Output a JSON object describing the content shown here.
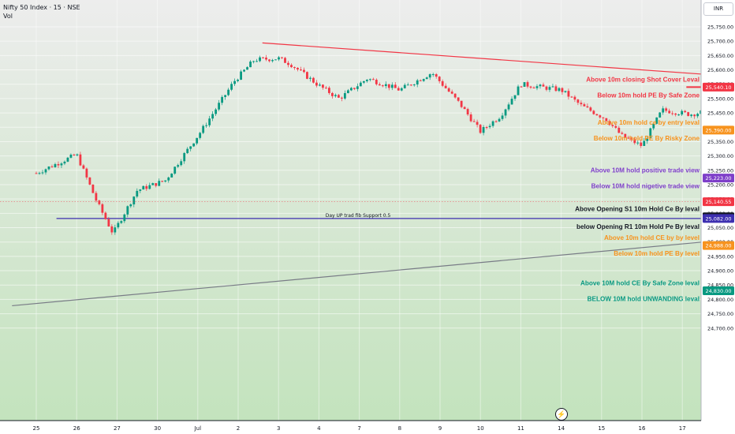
{
  "header": {
    "title": "Nifty 50 Index · 15 · NSE",
    "volume_label": "Vol",
    "currency": "INR"
  },
  "chart_data": {
    "type": "candlestick",
    "ylim": [
      24680,
      25800
    ],
    "y_ticks": [
      "25,750.00",
      "25,700.00",
      "25,650.00",
      "25,600.00",
      "25,550.00",
      "25,500.00",
      "25,450.00",
      "25,400.00",
      "25,350.00",
      "25,300.00",
      "25,250.00",
      "25,200.00",
      "25,150.00",
      "25,100.00",
      "25,050.00",
      "25,000.00",
      "24,950.00",
      "24,900.00",
      "24,850.00",
      "24,800.00",
      "24,750.00",
      "24,700.00"
    ],
    "x_ticks": [
      "25",
      "26",
      "27",
      "30",
      "Jul",
      "2",
      "3",
      "4",
      "7",
      "8",
      "9",
      "10",
      "11",
      "14",
      "15",
      "16",
      "17"
    ],
    "candle_path": [
      [
        0,
        25240
      ],
      [
        1,
        25305
      ],
      [
        1.5,
        25140
      ],
      [
        1.9,
        25030
      ],
      [
        2.5,
        25180
      ],
      [
        3.2,
        25215
      ],
      [
        4.1,
        25390
      ],
      [
        4.9,
        25560
      ],
      [
        5.4,
        25635
      ],
      [
        6,
        25640
      ],
      [
        6.3,
        25620
      ],
      [
        7,
        25545
      ],
      [
        7.5,
        25500
      ],
      [
        8.2,
        25570
      ],
      [
        9,
        25530
      ],
      [
        9.8,
        25590
      ],
      [
        10.5,
        25480
      ],
      [
        11,
        25385
      ],
      [
        11.5,
        25440
      ],
      [
        12,
        25550
      ],
      [
        13,
        25530
      ],
      [
        13.5,
        25475
      ],
      [
        14.1,
        25430
      ],
      [
        14.5,
        25370
      ],
      [
        15,
        25335
      ],
      [
        15.5,
        25460
      ],
      [
        16.2,
        25445
      ],
      [
        17,
        25465
      ],
      [
        17.6,
        25440
      ],
      [
        18,
        25475
      ],
      [
        18.4,
        25490
      ],
      [
        19,
        25505
      ],
      [
        19.4,
        25550
      ],
      [
        19.9,
        25560
      ],
      [
        20.2,
        25545
      ],
      [
        20.6,
        25525
      ],
      [
        20.9,
        25445
      ],
      [
        21.3,
        25425
      ],
      [
        21.7,
        25390
      ],
      [
        22.3,
        25360
      ],
      [
        22.6,
        25395
      ],
      [
        22.8,
        25325
      ],
      [
        23,
        25265
      ],
      [
        23.3,
        25165
      ],
      [
        23.8,
        25155
      ],
      [
        24.2,
        25145
      ]
    ],
    "levels": [
      {
        "value": 25540.1,
        "price_label": "25,540.10",
        "color": "#f23645",
        "width": 2,
        "x_start": 16.1,
        "label_above": "Above 10m closing Shot Cover Leval",
        "label_below": "Below 10m hold PE By Safe Zone",
        "label_color": "#f23645"
      },
      {
        "value": 25390.0,
        "price_label": "25,390.00",
        "color": "#f7931e",
        "width": 1.2,
        "x_start": 20.1,
        "label_above": "Above 10m hold ce by entry leval",
        "label_below": "Below 10m hold PE By Risky Zone",
        "label_color": "#f7931e"
      },
      {
        "value": 25223.0,
        "price_label": "25,223.00",
        "color": "#7e3fc9",
        "width": 0.8,
        "x_start": 19.8,
        "label_above": "Above 10M hold positive trade view",
        "label_below": "Below 10M hold nigetive trade view",
        "label_color": "#7e3fc9"
      },
      {
        "value": 25088.0,
        "price_label": "25,088.00",
        "color": "#131722",
        "width": 0.8,
        "x_start": 19.5,
        "label_above": "Above Opening S1 10m Hold Ce By leval",
        "label_below": "",
        "label_color": "#131722"
      },
      {
        "value": 25082.0,
        "price_label": "25,082.00",
        "color": "#3d2fb0",
        "width": 1.2,
        "x_start": 0.5,
        "label_above": "",
        "label_below": "below Opening R1 10m Hold Pe By leval",
        "label_color": "#131722",
        "center_label": "Day UP trad fib Support 0.5"
      },
      {
        "value": 24988.0,
        "price_label": "24,988.00",
        "color": "#f7931e",
        "width": 1.2,
        "x_start": 19.5,
        "label_above": "Above 10m hold CE by by level",
        "label_below": "Below 10m hold PE By level",
        "label_color": "#f7931e"
      },
      {
        "value": 24830.0,
        "price_label": "24,830.00",
        "color": "#089981",
        "width": 2,
        "x_start": 19.5,
        "label_above": "Above 10M hold CE By Safe Zone leval",
        "label_below": "BELOW 10M hold UNWANDING leval",
        "label_color": "#089981"
      }
    ],
    "current_price": {
      "value": 25140.55,
      "label": "25,140.55",
      "color": "#f23645"
    },
    "trendlines": [
      {
        "name": "descending-trendline",
        "color": "#f23645",
        "from": [
          5.6,
          25694
        ],
        "to": [
          25.6,
          25494
        ]
      },
      {
        "name": "ascending-trendline",
        "color": "#787b86",
        "from": [
          -0.6,
          24778
        ],
        "to": [
          31.0,
          25188
        ]
      }
    ]
  }
}
